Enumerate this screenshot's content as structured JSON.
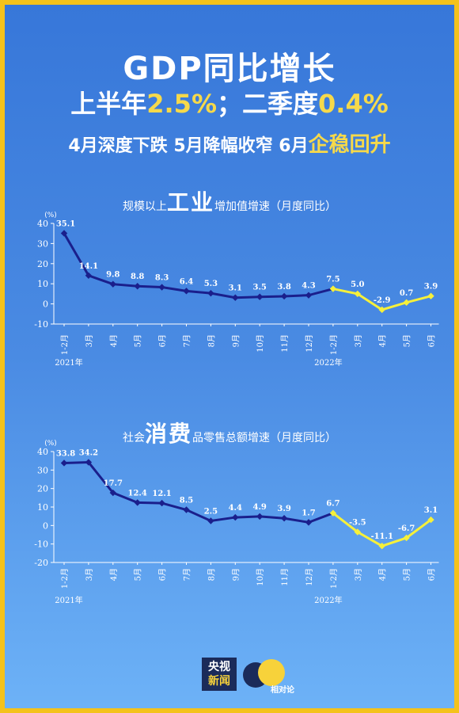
{
  "title": "GDP同比增长",
  "subtitle": {
    "a": "上半年",
    "b": "2.5%",
    "c": "；二季度",
    "d": "0.4%"
  },
  "tagline": {
    "a": "4月深度下跌 5月降幅收窄 6月",
    "b": "企稳",
    "c": "回升"
  },
  "chart_data": [
    {
      "type": "line",
      "title_parts": {
        "pre": "规模以上",
        "big": "工业",
        "post": "增加值增速（月度同比）"
      },
      "unit": "(%)",
      "categories": [
        "1-2月",
        "3月",
        "4月",
        "5月",
        "6月",
        "7月",
        "8月",
        "9月",
        "10月",
        "11月",
        "12月",
        "1-2月",
        "3月",
        "4月",
        "5月",
        "6月"
      ],
      "values": [
        35.1,
        14.1,
        9.8,
        8.8,
        8.3,
        6.4,
        5.3,
        3.1,
        3.5,
        3.8,
        4.3,
        7.5,
        5.0,
        -2.9,
        0.7,
        3.9
      ],
      "labels": [
        "35.1",
        "14.1",
        "9.8",
        "8.8",
        "8.3",
        "6.4",
        "5.3",
        "3.1",
        "3.5",
        "3.8",
        "4.3",
        "7.5",
        "5.0",
        "-2.9",
        "0.7",
        "3.9"
      ],
      "ylim": [
        -10,
        40
      ],
      "yticks": [
        "-10",
        "0",
        "10",
        "20",
        "30",
        "40"
      ],
      "year_labels": [
        "2021年",
        "2022年"
      ],
      "series_colors": {
        "2021": "#1A1F8C",
        "2022": "#F6F03A"
      }
    },
    {
      "type": "line",
      "title_parts": {
        "pre": "社会",
        "big": "消费",
        "post": "品零售总额增速（月度同比）"
      },
      "unit": "(%)",
      "categories": [
        "1-2月",
        "3月",
        "4月",
        "5月",
        "6月",
        "7月",
        "8月",
        "9月",
        "10月",
        "11月",
        "12月",
        "1-2月",
        "3月",
        "4月",
        "5月",
        "6月"
      ],
      "values": [
        33.8,
        34.2,
        17.7,
        12.4,
        12.1,
        8.5,
        2.5,
        4.4,
        4.9,
        3.9,
        1.7,
        6.7,
        -3.5,
        -11.1,
        -6.7,
        3.1
      ],
      "labels": [
        "33.8",
        "34.2",
        "17.7",
        "12.4",
        "12.1",
        "8.5",
        "2.5",
        "4.4",
        "4.9",
        "3.9",
        "1.7",
        "6.7",
        "-3.5",
        "-11.1",
        "-6.7",
        "3.1"
      ],
      "ylim": [
        -20,
        40
      ],
      "yticks": [
        "-20",
        "-10",
        "0",
        "10",
        "20",
        "30",
        "40"
      ],
      "year_labels": [
        "2021年",
        "2022年"
      ],
      "series_colors": {
        "2021": "#1A1F8C",
        "2022": "#F6F03A"
      }
    }
  ],
  "logos": {
    "cctv_top": "央视",
    "cctv_bottom": "新闻",
    "brand": "相对论"
  }
}
